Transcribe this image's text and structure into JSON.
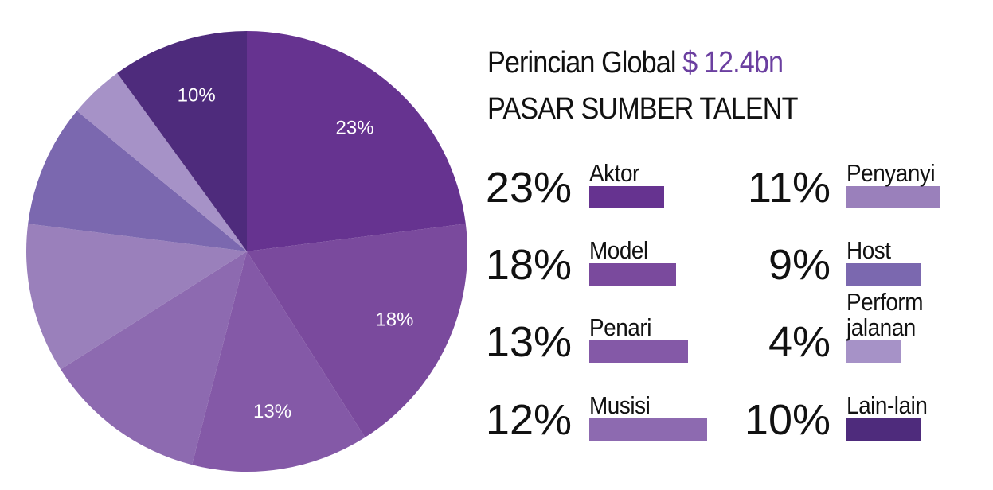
{
  "chart_data": {
    "type": "pie",
    "title": "Perincian Global",
    "total_label": "$ 12.4bn",
    "subtitle": "PASAR SUMBER TALENT",
    "categories": [
      "Aktor",
      "Model",
      "Penari",
      "Musisi",
      "Penyanyi",
      "Host",
      "Perform jalanan",
      "Lain-lain"
    ],
    "values": [
      23,
      18,
      13,
      12,
      11,
      9,
      4,
      10
    ],
    "value_labels": [
      "23%",
      "18%",
      "13%",
      "12%",
      "11%",
      "9%",
      "4%",
      "10%"
    ],
    "slice_label_shown": [
      true,
      true,
      true,
      false,
      false,
      false,
      false,
      true
    ],
    "colors": [
      "#663390",
      "#7a4a9d",
      "#8459a7",
      "#8d6ab0",
      "#9a80bb",
      "#7b68af",
      "#a692c7",
      "#4e2b7c"
    ]
  }
}
